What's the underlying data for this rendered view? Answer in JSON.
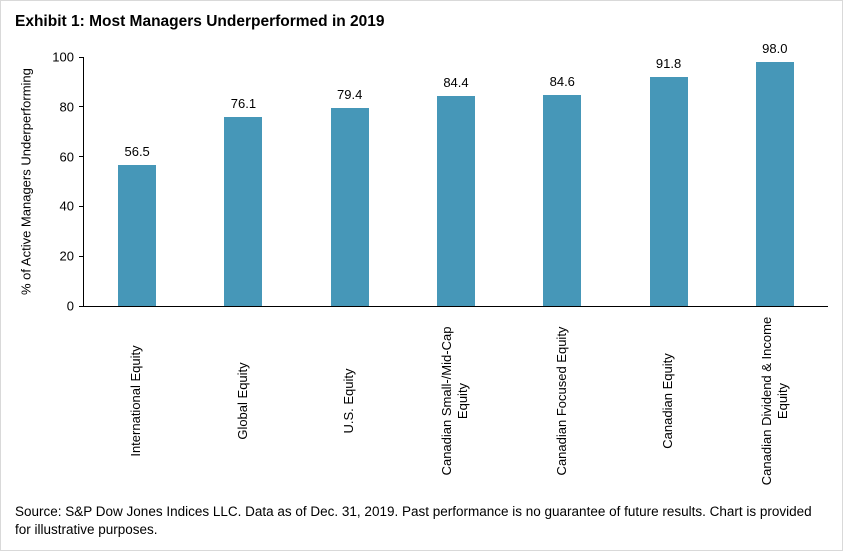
{
  "title": "Exhibit 1: Most Managers Underperformed in 2019",
  "source_note": "Source: S&P Dow Jones Indices LLC. Data as of Dec. 31, 2019. Past performance is no guarantee of future results. Chart is provided for illustrative purposes.",
  "chart_data": {
    "type": "bar",
    "title": "Exhibit 1: Most Managers Underperformed in 2019",
    "categories": [
      "International Equity",
      "Global Equity",
      "U.S. Equity",
      "Canadian Small-/Mid-Cap Equity",
      "Canadian Focused Equity",
      "Canadian Equity",
      "Canadian Dividend & Income Equity"
    ],
    "values": [
      56.5,
      76.1,
      79.4,
      84.4,
      84.6,
      91.8,
      98.0
    ],
    "value_labels": [
      "56.5",
      "76.1",
      "79.4",
      "84.4",
      "84.6",
      "91.8",
      "98.0"
    ],
    "xlabel": "",
    "ylabel": "% of Active Managers Underperforming",
    "ylim": [
      0,
      100
    ],
    "yticks": [
      0,
      20,
      40,
      60,
      80,
      100
    ],
    "bar_color": "#4697b8",
    "axis_color": "#000000",
    "grid": false,
    "legend": false
  }
}
